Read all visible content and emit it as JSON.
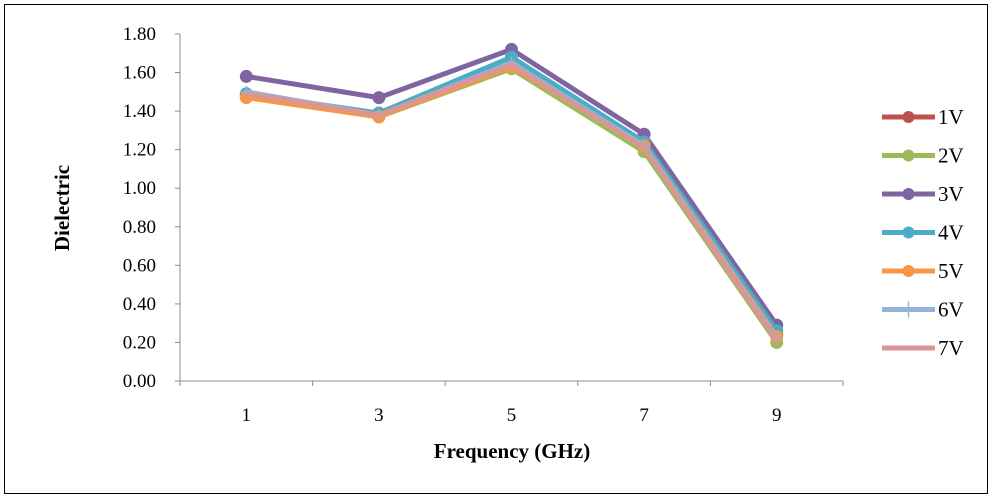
{
  "chart_data": {
    "type": "line",
    "title": "",
    "xlabel": "Frequency (GHz)",
    "ylabel": "Dielectric",
    "categories": [
      "1",
      "3",
      "5",
      "7",
      "9"
    ],
    "ylim": [
      0,
      1.8
    ],
    "yticks": [
      "0.00",
      "0.20",
      "0.40",
      "0.60",
      "0.80",
      "1.00",
      "1.20",
      "1.40",
      "1.60",
      "1.80"
    ],
    "grid": false,
    "legend_position": "right",
    "series": [
      {
        "name": "1V",
        "color": "#C0504D",
        "marker": "circle",
        "values": [
          1.48,
          1.38,
          1.65,
          1.23,
          0.24
        ]
      },
      {
        "name": "2V",
        "color": "#9BBB59",
        "marker": "circle",
        "values": [
          1.48,
          1.37,
          1.62,
          1.19,
          0.2
        ]
      },
      {
        "name": "3V",
        "color": "#8064A2",
        "marker": "circle",
        "values": [
          1.58,
          1.47,
          1.72,
          1.28,
          0.29
        ]
      },
      {
        "name": "4V",
        "color": "#4BACC6",
        "marker": "circle",
        "values": [
          1.49,
          1.39,
          1.68,
          1.24,
          0.26
        ]
      },
      {
        "name": "5V",
        "color": "#F79646",
        "marker": "circle",
        "values": [
          1.47,
          1.37,
          1.63,
          1.22,
          0.23
        ]
      },
      {
        "name": "6V",
        "color": "#95B3D7",
        "marker": "plus",
        "values": [
          1.5,
          1.38,
          1.65,
          1.22,
          0.22
        ]
      },
      {
        "name": "7V",
        "color": "#D99694",
        "marker": "none",
        "values": [
          1.49,
          1.38,
          1.64,
          1.21,
          0.21
        ]
      }
    ]
  }
}
